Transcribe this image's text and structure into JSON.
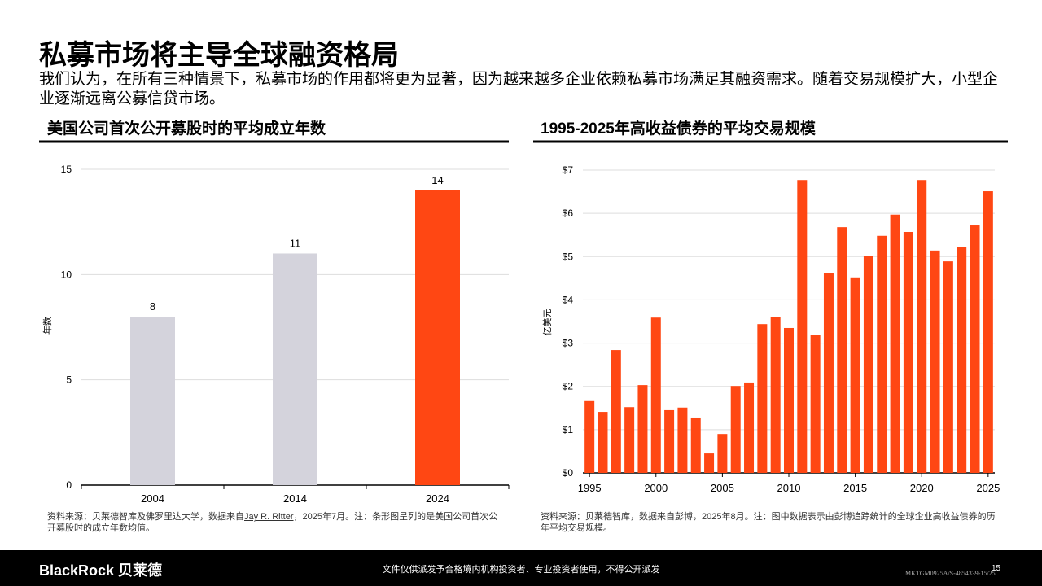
{
  "header": {
    "title": "私募市场将主导全球融资格局",
    "subtitle": "我们认为，在所有三种情景下，私募市场的作用都将更为显著，因为越来越多企业依赖私募市场满足其融资需求。随着交易规模扩大，小型企业逐渐远离公募信贷市场。"
  },
  "chart_data": [
    {
      "type": "bar",
      "title": "美国公司首次公开募股时的平均成立年数",
      "y_label": "年数",
      "categories": [
        "2004",
        "2014",
        "2024"
      ],
      "values": [
        8,
        11,
        14
      ],
      "colors": [
        "#d4d3dc",
        "#d4d3dc",
        "#ff4713"
      ],
      "ylim": [
        0,
        15
      ],
      "yticks": [
        0,
        5,
        10,
        15
      ],
      "grid": true,
      "source": [
        "资料来源：贝莱德智库及佛罗里达大学，数据来自",
        "Jay R. Ritter",
        "，2025年7月。注：条形图呈列的是美国公司首次公开募股时的成立年数均值。"
      ]
    },
    {
      "type": "bar",
      "title": "1995-2025年高收益债券的平均交易规模",
      "y_label": "亿美元",
      "x": [
        1995,
        1996,
        1997,
        1998,
        1999,
        2000,
        2001,
        2002,
        2003,
        2004,
        2005,
        2006,
        2007,
        2008,
        2009,
        2010,
        2011,
        2012,
        2013,
        2014,
        2015,
        2016,
        2017,
        2018,
        2019,
        2020,
        2021,
        2022,
        2023,
        2024,
        2025
      ],
      "values": [
        1.66,
        1.41,
        2.84,
        1.52,
        2.03,
        3.59,
        1.45,
        1.51,
        1.28,
        0.45,
        0.9,
        2.01,
        2.09,
        3.44,
        3.61,
        3.35,
        6.77,
        3.18,
        4.61,
        5.68,
        4.52,
        5.01,
        5.48,
        5.97,
        5.57,
        6.77,
        5.14,
        4.89,
        5.23,
        5.72,
        6.51
      ],
      "color": "#ff4713",
      "xlim": [
        1994.5,
        2025.5
      ],
      "xticks": [
        1995,
        2000,
        2005,
        2010,
        2015,
        2020,
        2025
      ],
      "ylim": [
        0,
        7
      ],
      "yticks": [
        {
          "value": 0,
          "label": "$0"
        },
        {
          "value": 1,
          "label": "$1"
        },
        {
          "value": 2,
          "label": "$2"
        },
        {
          "value": 3,
          "label": "$3"
        },
        {
          "value": 4,
          "label": "$4"
        },
        {
          "value": 5,
          "label": "$5"
        },
        {
          "value": 6,
          "label": "$6"
        },
        {
          "value": 7,
          "label": "$7"
        }
      ],
      "grid": true,
      "source": [
        "资料来源：贝莱德智库，数据来自彭博，2025年8月。注：图中数据表示由彭博追踪统计的全球企业高收益债券的历年平均交易规模。"
      ]
    }
  ],
  "footer": {
    "logo": "BlackRock 贝莱德",
    "disclaimer": "文件仅供派发予合格境内机构投资者、专业投资者使用，不得公开派发",
    "code": "MKTGM0925A/S-4854339-15/25",
    "page": "15"
  }
}
